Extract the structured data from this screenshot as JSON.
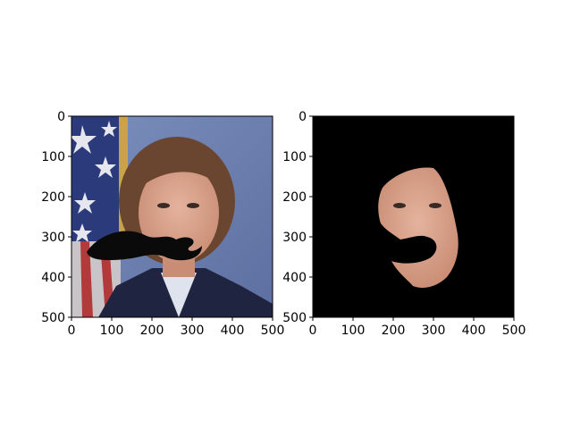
{
  "panels": [
    {
      "name": "left-panel",
      "content": "portrait photo of a woman in uniform in front of an American flag, with a black cartoon mustache overlaid",
      "x_ticks": [
        "0",
        "100",
        "200",
        "300",
        "400",
        "500"
      ],
      "y_ticks": [
        "0",
        "100",
        "200",
        "300",
        "400",
        "500"
      ],
      "xlim": [
        0,
        500
      ],
      "ylim": [
        500,
        0
      ]
    },
    {
      "name": "right-panel",
      "content": "same face segmented on a black background, mustache region removed",
      "x_ticks": [
        "0",
        "100",
        "200",
        "300",
        "400",
        "500"
      ],
      "y_ticks": [
        "0",
        "100",
        "200",
        "300",
        "400",
        "500"
      ],
      "xlim": [
        0,
        500
      ],
      "ylim": [
        500,
        0
      ]
    }
  ],
  "colors": {
    "background_wall": "#6f83b0",
    "flag_blue": "#2b3a7a",
    "flag_red": "#b23a3a",
    "uniform": "#1f2440",
    "skin": "#d8a08a",
    "hair": "#6a4630",
    "mustache": "#0a0a0a",
    "mask_background": "#000000"
  }
}
